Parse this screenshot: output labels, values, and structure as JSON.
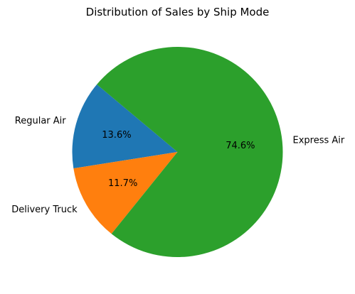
{
  "chart_data": {
    "type": "pie",
    "title": "Distribution of Sales by Ship Mode",
    "slices": [
      {
        "label": "Regular Air",
        "value": 13.6,
        "pct_label": "13.6%",
        "color": "#1f77b4"
      },
      {
        "label": "Delivery Truck",
        "value": 11.7,
        "pct_label": "11.7%",
        "color": "#ff7f0e"
      },
      {
        "label": "Express Air",
        "value": 74.6,
        "pct_label": "74.6%",
        "color": "#2ca02c"
      }
    ]
  }
}
